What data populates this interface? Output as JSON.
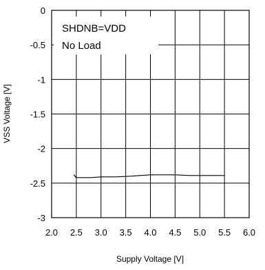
{
  "chart_data": {
    "type": "line",
    "title": "",
    "xlabel": "Supply Voltage [V]",
    "ylabel": "VSS Voltage [V]",
    "xlim": [
      2.0,
      6.0
    ],
    "ylim": [
      -3,
      0
    ],
    "x_ticks": [
      "2.0",
      "2.5",
      "3.0",
      "3.5",
      "4.0",
      "4.5",
      "5.0",
      "5.5",
      "6.0"
    ],
    "y_ticks": [
      "0",
      "-0.5",
      "-1",
      "-1.5",
      "-2",
      "-2.5",
      "-3"
    ],
    "grid": true,
    "annotations": [
      "SHDNB=VDD",
      "No Load"
    ],
    "series": [
      {
        "x": [
          2.45,
          2.5,
          2.6,
          2.8,
          3.0,
          3.3,
          3.6,
          3.8,
          4.0,
          4.3,
          4.5,
          4.8,
          5.0,
          5.2,
          5.5
        ],
        "y": [
          -2.38,
          -2.42,
          -2.42,
          -2.42,
          -2.41,
          -2.41,
          -2.4,
          -2.39,
          -2.38,
          -2.38,
          -2.38,
          -2.39,
          -2.39,
          -2.39,
          -2.39
        ],
        "color": "#000000"
      }
    ]
  }
}
